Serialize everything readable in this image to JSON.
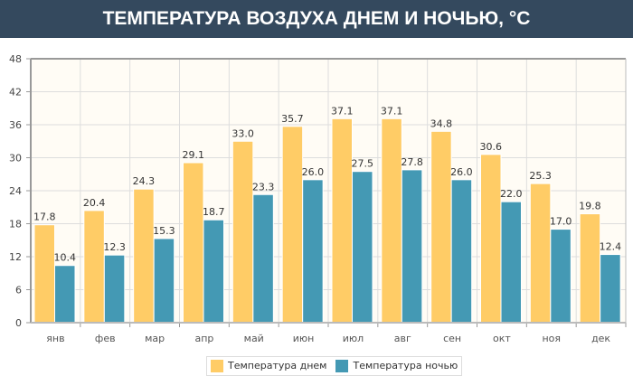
{
  "chart_data": {
    "type": "bar",
    "title": "ТЕМПЕРАТУРА ВОЗДУХА ДНЕМ И НОЧЬЮ, °C",
    "categories": [
      "янв",
      "фев",
      "мар",
      "апр",
      "май",
      "июн",
      "июл",
      "авг",
      "сен",
      "окт",
      "ноя",
      "дек"
    ],
    "series": [
      {
        "name": "Температура днем",
        "color": "#ffcc66",
        "values": [
          17.8,
          20.4,
          24.3,
          29.1,
          33.0,
          35.7,
          37.1,
          37.1,
          34.8,
          30.6,
          25.3,
          19.8
        ]
      },
      {
        "name": "Температура ночью",
        "color": "#4499b4",
        "values": [
          10.4,
          12.3,
          15.3,
          18.7,
          23.3,
          26.0,
          27.5,
          27.8,
          26.0,
          22.0,
          17.0,
          12.4
        ]
      }
    ],
    "ylim": [
      0,
      48
    ],
    "yticks": [
      0,
      6,
      12,
      18,
      24,
      30,
      36,
      42,
      48
    ],
    "grid": true,
    "legend": "bottom"
  }
}
